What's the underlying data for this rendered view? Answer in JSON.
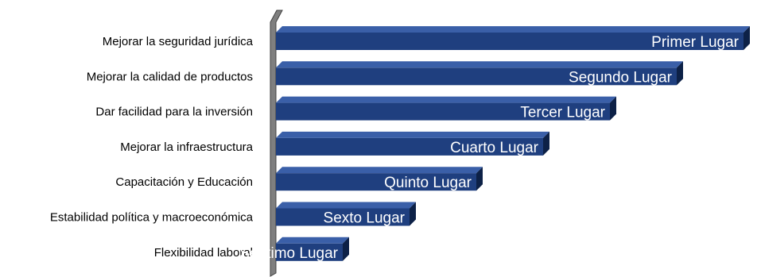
{
  "colors": {
    "bar_front": "#1f3f7f",
    "bar_top": "#3a5fa8",
    "bar_side": "#0d2147",
    "wall": "#7f7f7f",
    "wall_dark": "#404040"
  },
  "chart_data": {
    "type": "bar",
    "orientation": "horizontal",
    "title": "",
    "xlabel": "",
    "ylabel": "",
    "grid": false,
    "legend": "none",
    "categories": [
      "Mejorar la seguridad jurídica",
      "Mejorar la calidad de productos",
      "Dar facilidad para la inversión",
      "Mejorar la infraestructura",
      "Capacitación y Educación",
      "Estabilidad política y macroeconómica",
      "Flexibilidad laboral"
    ],
    "values": [
      7,
      6,
      5,
      4,
      3,
      2,
      1
    ],
    "data_labels": [
      "Primer Lugar",
      "Segundo Lugar",
      "Tercer Lugar",
      "Cuarto Lugar",
      "Quinto Lugar",
      "Sexto Lugar",
      "Séptimo Lugar"
    ]
  }
}
